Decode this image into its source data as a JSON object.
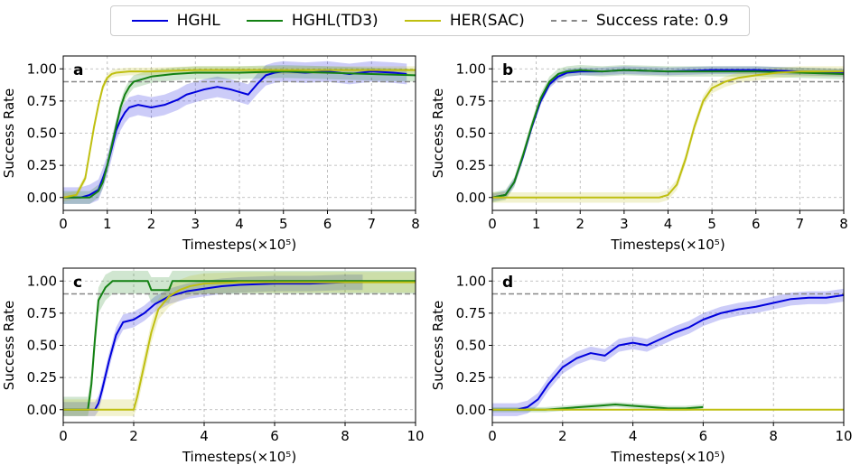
{
  "chart_data": {
    "type": "line",
    "legend": {
      "placement": "top-center",
      "entries": [
        {
          "label": "HGHL",
          "color": "#0000dd",
          "style": "solid"
        },
        {
          "label": "HGHL(TD3)",
          "color": "#138113",
          "style": "solid"
        },
        {
          "label": "HER(SAC)",
          "color": "#bfbf10",
          "style": "solid"
        },
        {
          "label": "Success rate: 0.9",
          "color": "#888888",
          "style": "dashed"
        }
      ]
    },
    "panels": [
      {
        "label": "a",
        "xlabel": "Timesteps(×10⁵)",
        "ylabel": "Success Rate",
        "xlim": [
          0,
          8
        ],
        "ylim": [
          -0.1,
          1.1
        ],
        "xticks": [
          0,
          1,
          2,
          3,
          4,
          5,
          6,
          7,
          8
        ],
        "yticks": [
          0.0,
          0.25,
          0.5,
          0.75,
          1.0
        ],
        "ytick_labels": [
          "0.00",
          "0.25",
          "0.50",
          "0.75",
          "1.00"
        ],
        "reference_line": 0.9,
        "grid": true,
        "series": [
          {
            "name": "HGHL",
            "color": "#0000dd",
            "band": 0.08,
            "x": [
              0,
              0.4,
              0.6,
              0.8,
              0.9,
              1.0,
              1.1,
              1.2,
              1.3,
              1.4,
              1.5,
              1.7,
              2.0,
              2.3,
              2.6,
              2.8,
              3.0,
              3.2,
              3.5,
              3.8,
              4.0,
              4.2,
              4.4,
              4.6,
              4.8,
              5.0,
              5.5,
              6.0,
              6.5,
              7.0,
              7.5,
              7.8
            ],
            "y": [
              0.0,
              0.0,
              0.02,
              0.06,
              0.15,
              0.25,
              0.38,
              0.52,
              0.6,
              0.66,
              0.7,
              0.72,
              0.7,
              0.72,
              0.76,
              0.8,
              0.82,
              0.84,
              0.86,
              0.84,
              0.82,
              0.8,
              0.88,
              0.95,
              0.97,
              0.98,
              0.97,
              0.98,
              0.96,
              0.98,
              0.97,
              0.96
            ]
          },
          {
            "name": "HGHL(TD3)",
            "color": "#138113",
            "band": 0.05,
            "x": [
              0,
              0.6,
              0.8,
              0.9,
              1.0,
              1.1,
              1.2,
              1.3,
              1.4,
              1.5,
              1.6,
              1.8,
              2.0,
              2.5,
              3.0,
              3.5,
              4.0,
              5.0,
              6.0,
              7.0,
              8.0
            ],
            "y": [
              0.0,
              0.0,
              0.05,
              0.12,
              0.25,
              0.4,
              0.55,
              0.7,
              0.8,
              0.86,
              0.9,
              0.92,
              0.94,
              0.96,
              0.97,
              0.97,
              0.97,
              0.98,
              0.97,
              0.96,
              0.95
            ]
          },
          {
            "name": "HER(SAC)",
            "color": "#bfbf10",
            "band": 0.03,
            "x": [
              0,
              0.3,
              0.5,
              0.6,
              0.7,
              0.8,
              0.9,
              1.0,
              1.1,
              1.2,
              1.5,
              2.0,
              3.0,
              4.0,
              5.0,
              6.0,
              7.0,
              8.0
            ],
            "y": [
              0.0,
              0.02,
              0.15,
              0.35,
              0.55,
              0.72,
              0.86,
              0.93,
              0.96,
              0.97,
              0.98,
              0.98,
              0.99,
              0.99,
              0.99,
              0.99,
              0.99,
              0.99
            ]
          }
        ]
      },
      {
        "label": "b",
        "xlabel": "Timesteps(×10⁵)",
        "ylabel": "Success Rate",
        "xlim": [
          0,
          8
        ],
        "ylim": [
          -0.1,
          1.1
        ],
        "xticks": [
          0,
          1,
          2,
          3,
          4,
          5,
          6,
          7,
          8
        ],
        "yticks": [
          0.0,
          0.25,
          0.5,
          0.75,
          1.0
        ],
        "ytick_labels": [
          "0.00",
          "0.25",
          "0.50",
          "0.75",
          "1.00"
        ],
        "reference_line": 0.9,
        "grid": true,
        "series": [
          {
            "name": "HGHL",
            "color": "#0000dd",
            "band": 0.03,
            "x": [
              0,
              0.3,
              0.5,
              0.7,
              0.9,
              1.1,
              1.3,
              1.5,
              1.7,
              2.0,
              2.5,
              3.0,
              4.0,
              5.0,
              6.0,
              7.0,
              8.0
            ],
            "y": [
              0.0,
              0.02,
              0.12,
              0.32,
              0.55,
              0.75,
              0.88,
              0.94,
              0.97,
              0.98,
              0.98,
              0.99,
              0.98,
              0.99,
              0.99,
              0.98,
              0.97
            ]
          },
          {
            "name": "HGHL(TD3)",
            "color": "#138113",
            "band": 0.04,
            "x": [
              0,
              0.3,
              0.5,
              0.7,
              0.9,
              1.1,
              1.3,
              1.5,
              1.7,
              2.0,
              2.5,
              3.0,
              4.0,
              5.0,
              6.0,
              7.0,
              8.0
            ],
            "y": [
              0.0,
              0.02,
              0.12,
              0.33,
              0.56,
              0.77,
              0.9,
              0.96,
              0.98,
              0.99,
              0.98,
              0.99,
              0.98,
              0.98,
              0.98,
              0.97,
              0.96
            ]
          },
          {
            "name": "HER(SAC)",
            "color": "#bfbf10",
            "band": 0.04,
            "x": [
              0,
              1.0,
              2.0,
              3.0,
              3.8,
              4.0,
              4.2,
              4.4,
              4.6,
              4.8,
              5.0,
              5.3,
              5.6,
              6.0,
              6.5,
              7.0,
              7.5,
              8.0
            ],
            "y": [
              0.0,
              0.0,
              0.0,
              0.0,
              0.0,
              0.02,
              0.1,
              0.3,
              0.55,
              0.75,
              0.85,
              0.9,
              0.93,
              0.95,
              0.97,
              0.98,
              0.98,
              0.98
            ]
          }
        ]
      },
      {
        "label": "c",
        "xlabel": "Timesteps(×10⁵)",
        "ylabel": "Success Rate",
        "xlim": [
          0,
          10
        ],
        "ylim": [
          -0.1,
          1.1
        ],
        "xticks": [
          0,
          2,
          4,
          6,
          8,
          10
        ],
        "yticks": [
          0.0,
          0.25,
          0.5,
          0.75,
          1.0
        ],
        "ytick_labels": [
          "0.00",
          "0.25",
          "0.50",
          "0.75",
          "1.00"
        ],
        "reference_line": 0.9,
        "grid": true,
        "series": [
          {
            "name": "HGHL",
            "color": "#0000dd",
            "band": 0.06,
            "x": [
              0,
              0.9,
              1.0,
              1.1,
              1.3,
              1.5,
              1.7,
              2.0,
              2.3,
              2.6,
              3.0,
              3.5,
              4.0,
              4.5,
              5.0,
              6.0,
              7.0,
              8.0,
              8.5
            ],
            "y": [
              0.0,
              0.0,
              0.05,
              0.15,
              0.38,
              0.58,
              0.68,
              0.7,
              0.75,
              0.82,
              0.88,
              0.92,
              0.94,
              0.96,
              0.97,
              0.98,
              0.98,
              0.99,
              0.99
            ]
          },
          {
            "name": "HGHL(TD3)",
            "color": "#138113",
            "band": 0.1,
            "x": [
              0,
              0.7,
              0.8,
              0.9,
              1.0,
              1.2,
              1.4,
              1.6,
              2.4,
              2.5,
              3.0,
              3.1,
              3.5,
              4.0,
              5.0,
              6.0,
              7.0,
              8.0,
              9.0,
              10.0
            ],
            "y": [
              0.0,
              0.0,
              0.2,
              0.55,
              0.85,
              0.95,
              1.0,
              1.0,
              1.0,
              0.93,
              0.93,
              1.0,
              1.0,
              1.0,
              1.0,
              1.0,
              1.0,
              1.0,
              1.0,
              1.0
            ]
          },
          {
            "name": "HER(SAC)",
            "color": "#bfbf10",
            "band": 0.08,
            "x": [
              0,
              2.0,
              2.1,
              2.3,
              2.5,
              2.7,
              3.0,
              3.3,
              3.6,
              4.0,
              5.0,
              6.0,
              7.0,
              8.0,
              9.0,
              10.0
            ],
            "y": [
              0.0,
              0.0,
              0.1,
              0.35,
              0.6,
              0.78,
              0.88,
              0.93,
              0.96,
              0.98,
              0.99,
              0.99,
              0.99,
              0.99,
              0.99,
              0.99
            ]
          }
        ]
      },
      {
        "label": "d",
        "xlabel": "Timesteps(×10⁵)",
        "ylabel": "Success Rate",
        "xlim": [
          0,
          10
        ],
        "ylim": [
          -0.1,
          1.1
        ],
        "xticks": [
          0,
          2,
          4,
          6,
          8,
          10
        ],
        "yticks": [
          0.0,
          0.25,
          0.5,
          0.75,
          1.0
        ],
        "ytick_labels": [
          "0.00",
          "0.25",
          "0.50",
          "0.75",
          "1.00"
        ],
        "reference_line": 0.9,
        "grid": true,
        "series": [
          {
            "name": "HGHL",
            "color": "#0000dd",
            "band": 0.05,
            "x": [
              0,
              0.7,
              1.0,
              1.3,
              1.6,
              2.0,
              2.4,
              2.8,
              3.2,
              3.6,
              4.0,
              4.4,
              4.8,
              5.2,
              5.6,
              6.0,
              6.5,
              7.0,
              7.5,
              8.0,
              8.5,
              9.0,
              9.5,
              10.0
            ],
            "y": [
              0.0,
              0.0,
              0.02,
              0.08,
              0.2,
              0.33,
              0.4,
              0.44,
              0.42,
              0.5,
              0.52,
              0.5,
              0.55,
              0.6,
              0.64,
              0.7,
              0.75,
              0.78,
              0.8,
              0.83,
              0.86,
              0.87,
              0.87,
              0.89
            ]
          },
          {
            "name": "HGHL(TD3)",
            "color": "#138113",
            "band": 0.02,
            "x": [
              0,
              1.5,
              2.0,
              2.5,
              3.0,
              3.5,
              4.0,
              4.5,
              5.0,
              5.5,
              6.0
            ],
            "y": [
              0.0,
              0.0,
              0.01,
              0.02,
              0.03,
              0.04,
              0.03,
              0.02,
              0.01,
              0.01,
              0.02
            ]
          },
          {
            "name": "HER(SAC)",
            "color": "#bfbf10",
            "band": 0.0,
            "x": [
              0,
              10
            ],
            "y": [
              0.0,
              0.0
            ]
          }
        ]
      }
    ]
  }
}
